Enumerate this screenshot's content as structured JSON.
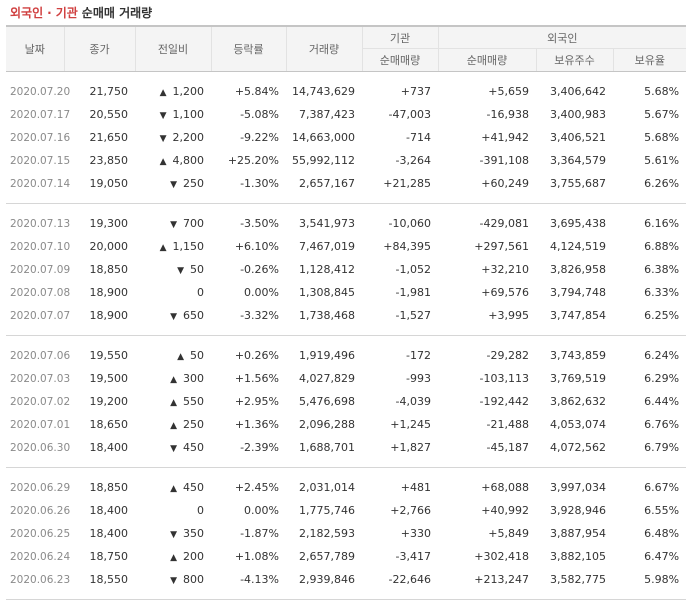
{
  "title": {
    "part1": "외국인",
    "separator": "·",
    "part2": "기관",
    "part3": "순매매 거래량"
  },
  "headers": {
    "date": "날짜",
    "close": "종가",
    "change": "전일비",
    "rate": "등락률",
    "volume": "거래량",
    "institution": "기관",
    "foreign": "외국인",
    "inst_net": "순매매량",
    "foreign_net": "순매매량",
    "holdings": "보유주수",
    "ratio": "보유율"
  },
  "colors": {
    "up": "#d22c2c",
    "down": "#1f63c6"
  },
  "groups": [
    [
      {
        "date": "2020.07.20",
        "close": "21,750",
        "dir": "up",
        "change": "1,200",
        "rate": "+5.84%",
        "volume": "14,743,629",
        "inst": "+737",
        "foreign": "+5,659",
        "holdings": "3,406,642",
        "ratio": "5.68%"
      },
      {
        "date": "2020.07.17",
        "close": "20,550",
        "dir": "down",
        "change": "1,100",
        "rate": "-5.08%",
        "volume": "7,387,423",
        "inst": "-47,003",
        "foreign": "-16,938",
        "holdings": "3,400,983",
        "ratio": "5.67%"
      },
      {
        "date": "2020.07.16",
        "close": "21,650",
        "dir": "down",
        "change": "2,200",
        "rate": "-9.22%",
        "volume": "14,663,000",
        "inst": "-714",
        "foreign": "+41,942",
        "holdings": "3,406,521",
        "ratio": "5.68%"
      },
      {
        "date": "2020.07.15",
        "close": "23,850",
        "dir": "up",
        "change": "4,800",
        "rate": "+25.20%",
        "volume": "55,992,112",
        "inst": "-3,264",
        "foreign": "-391,108",
        "holdings": "3,364,579",
        "ratio": "5.61%"
      },
      {
        "date": "2020.07.14",
        "close": "19,050",
        "dir": "down",
        "change": "250",
        "rate": "-1.30%",
        "volume": "2,657,167",
        "inst": "+21,285",
        "foreign": "+60,249",
        "holdings": "3,755,687",
        "ratio": "6.26%"
      }
    ],
    [
      {
        "date": "2020.07.13",
        "close": "19,300",
        "dir": "down",
        "change": "700",
        "rate": "-3.50%",
        "volume": "3,541,973",
        "inst": "-10,060",
        "foreign": "-429,081",
        "holdings": "3,695,438",
        "ratio": "6.16%"
      },
      {
        "date": "2020.07.10",
        "close": "20,000",
        "dir": "up",
        "change": "1,150",
        "rate": "+6.10%",
        "volume": "7,467,019",
        "inst": "+84,395",
        "foreign": "+297,561",
        "holdings": "4,124,519",
        "ratio": "6.88%"
      },
      {
        "date": "2020.07.09",
        "close": "18,850",
        "dir": "down",
        "change": "50",
        "rate": "-0.26%",
        "volume": "1,128,412",
        "inst": "-1,052",
        "foreign": "+32,210",
        "holdings": "3,826,958",
        "ratio": "6.38%"
      },
      {
        "date": "2020.07.08",
        "close": "18,900",
        "dir": "flat",
        "change": "0",
        "rate": "0.00%",
        "volume": "1,308,845",
        "inst": "-1,981",
        "foreign": "+69,576",
        "holdings": "3,794,748",
        "ratio": "6.33%"
      },
      {
        "date": "2020.07.07",
        "close": "18,900",
        "dir": "down",
        "change": "650",
        "rate": "-3.32%",
        "volume": "1,738,468",
        "inst": "-1,527",
        "foreign": "+3,995",
        "holdings": "3,747,854",
        "ratio": "6.25%"
      }
    ],
    [
      {
        "date": "2020.07.06",
        "close": "19,550",
        "dir": "up",
        "change": "50",
        "rate": "+0.26%",
        "volume": "1,919,496",
        "inst": "-172",
        "foreign": "-29,282",
        "holdings": "3,743,859",
        "ratio": "6.24%"
      },
      {
        "date": "2020.07.03",
        "close": "19,500",
        "dir": "up",
        "change": "300",
        "rate": "+1.56%",
        "volume": "4,027,829",
        "inst": "-993",
        "foreign": "-103,113",
        "holdings": "3,769,519",
        "ratio": "6.29%"
      },
      {
        "date": "2020.07.02",
        "close": "19,200",
        "dir": "up",
        "change": "550",
        "rate": "+2.95%",
        "volume": "5,476,698",
        "inst": "-4,039",
        "foreign": "-192,442",
        "holdings": "3,862,632",
        "ratio": "6.44%"
      },
      {
        "date": "2020.07.01",
        "close": "18,650",
        "dir": "up",
        "change": "250",
        "rate": "+1.36%",
        "volume": "2,096,288",
        "inst": "+1,245",
        "foreign": "-21,488",
        "holdings": "4,053,074",
        "ratio": "6.76%"
      },
      {
        "date": "2020.06.30",
        "close": "18,400",
        "dir": "down",
        "change": "450",
        "rate": "-2.39%",
        "volume": "1,688,701",
        "inst": "+1,827",
        "foreign": "-45,187",
        "holdings": "4,072,562",
        "ratio": "6.79%"
      }
    ],
    [
      {
        "date": "2020.06.29",
        "close": "18,850",
        "dir": "up",
        "change": "450",
        "rate": "+2.45%",
        "volume": "2,031,014",
        "inst": "+481",
        "foreign": "+68,088",
        "holdings": "3,997,034",
        "ratio": "6.67%"
      },
      {
        "date": "2020.06.26",
        "close": "18,400",
        "dir": "flat",
        "change": "0",
        "rate": "0.00%",
        "volume": "1,775,746",
        "inst": "+2,766",
        "foreign": "+40,992",
        "holdings": "3,928,946",
        "ratio": "6.55%"
      },
      {
        "date": "2020.06.25",
        "close": "18,400",
        "dir": "down",
        "change": "350",
        "rate": "-1.87%",
        "volume": "2,182,593",
        "inst": "+330",
        "foreign": "+5,849",
        "holdings": "3,887,954",
        "ratio": "6.48%"
      },
      {
        "date": "2020.06.24",
        "close": "18,750",
        "dir": "up",
        "change": "200",
        "rate": "+1.08%",
        "volume": "2,657,789",
        "inst": "-3,417",
        "foreign": "+302,418",
        "holdings": "3,882,105",
        "ratio": "6.47%"
      },
      {
        "date": "2020.06.23",
        "close": "18,550",
        "dir": "down",
        "change": "800",
        "rate": "-4.13%",
        "volume": "2,939,846",
        "inst": "-22,646",
        "foreign": "+213,247",
        "holdings": "3,582,775",
        "ratio": "5.98%"
      }
    ]
  ]
}
